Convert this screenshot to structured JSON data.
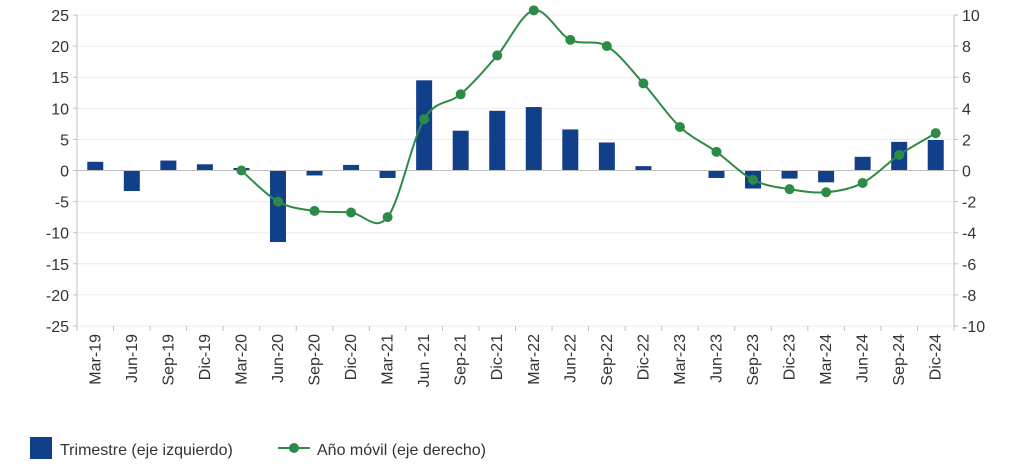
{
  "chart_data": {
    "type": "bar+line",
    "categories": [
      "Mar-19",
      "Jun-19",
      "Sep-19",
      "Dic-19",
      "Mar-20",
      "Jun-20",
      "Sep-20",
      "Dic-20",
      "Mar-21",
      "Jun -21",
      "Sep-21",
      "Dic-21",
      "Mar-22",
      "Jun-22",
      "Sep-22",
      "Dic-22",
      "Mar-23",
      "Jun-23",
      "Sep-23",
      "Dic-23",
      "Mar-24",
      "Jun-24",
      "Sep-24",
      "Dic-24"
    ],
    "y_left": {
      "min": -25,
      "max": 25,
      "step": 5,
      "ticks": [
        "25",
        "20",
        "15",
        "10",
        "5",
        "0",
        "-5",
        "-10",
        "-15",
        "-20",
        "-25"
      ]
    },
    "y_right": {
      "min": -10,
      "max": 10,
      "step": 2,
      "ticks": [
        "10",
        "8",
        "6",
        "4",
        "2",
        "0",
        "-2",
        "-4",
        "-6",
        "-8",
        "-10"
      ]
    },
    "series": [
      {
        "name": "Trimestre (eje izquierdo)",
        "type": "bar",
        "axis": "left",
        "color": "#123f8a",
        "values": [
          1.4,
          -3.3,
          1.6,
          1.0,
          0.4,
          -11.5,
          -0.8,
          0.9,
          -1.2,
          14.5,
          6.4,
          9.6,
          10.2,
          6.6,
          4.5,
          0.7,
          null,
          -1.2,
          -2.9,
          -1.3,
          -1.9,
          2.2,
          4.6,
          4.9
        ]
      },
      {
        "name": "Año móvil (eje derecho)",
        "type": "line",
        "axis": "right",
        "color": "#2e8b47",
        "values": [
          null,
          null,
          null,
          null,
          0.0,
          -2.0,
          -2.6,
          -2.7,
          -3.0,
          3.3,
          4.9,
          7.4,
          10.3,
          8.4,
          8.0,
          5.6,
          2.8,
          1.2,
          -0.6,
          -1.2,
          -1.4,
          -0.8,
          1.0,
          2.4
        ]
      }
    ],
    "legend_position": "bottom-left",
    "grid": true
  }
}
